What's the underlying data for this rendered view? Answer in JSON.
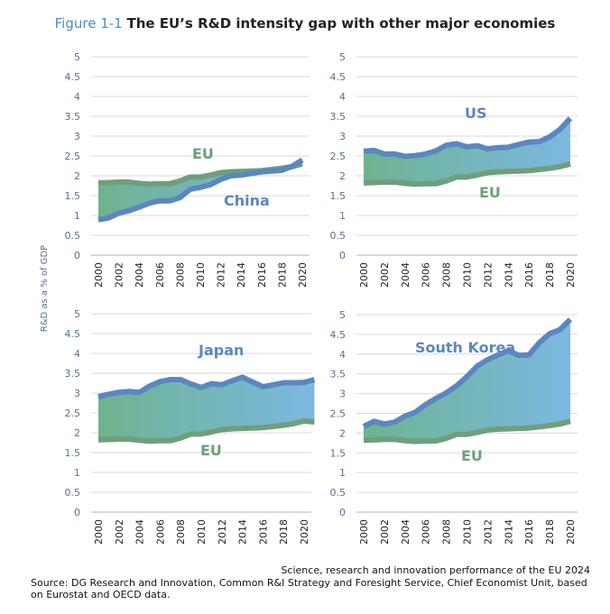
{
  "title": {
    "figure": "Figure 1-1",
    "text": "The EU’s R&D intensity gap with other major economies"
  },
  "ylabel": "R&D as a % of GDP",
  "colors": {
    "partner_line": "#5b87c0",
    "eu_line": "#6f9f7c",
    "fill_start": "#6eb38f",
    "fill_end": "#7cb8e2",
    "grid": "#d9d9d9",
    "axis_text": "#59708f"
  },
  "chart_data": [
    {
      "type": "area",
      "panel": "top-left",
      "x": [
        2000,
        2001,
        2002,
        2003,
        2004,
        2005,
        2006,
        2007,
        2008,
        2009,
        2010,
        2011,
        2012,
        2013,
        2014,
        2015,
        2016,
        2017,
        2018,
        2019,
        2020
      ],
      "xticks": [
        "2000",
        "2002",
        "2004",
        "2006",
        "2008",
        "2010",
        "2012",
        "2014",
        "2016",
        "2018",
        "2020"
      ],
      "yticks": [
        "0",
        "0.5",
        "1",
        "1.5",
        "2",
        "2.5",
        "3",
        "3.5",
        "4",
        "4.5",
        "5"
      ],
      "ylim": [
        0,
        5
      ],
      "grid": true,
      "series": [
        {
          "name": "EU",
          "values": [
            1.82,
            1.83,
            1.84,
            1.84,
            1.81,
            1.79,
            1.8,
            1.8,
            1.87,
            1.97,
            1.97,
            2.02,
            2.08,
            2.1,
            2.11,
            2.12,
            2.13,
            2.16,
            2.19,
            2.23,
            2.3
          ]
        },
        {
          "name": "China",
          "values": [
            0.89,
            0.94,
            1.06,
            1.12,
            1.21,
            1.31,
            1.37,
            1.37,
            1.45,
            1.66,
            1.71,
            1.78,
            1.91,
            2.0,
            2.02,
            2.06,
            2.1,
            2.12,
            2.14,
            2.24,
            2.4
          ]
        }
      ]
    },
    {
      "type": "area",
      "panel": "top-right",
      "x": [
        2000,
        2001,
        2002,
        2003,
        2004,
        2005,
        2006,
        2007,
        2008,
        2009,
        2010,
        2011,
        2012,
        2013,
        2014,
        2015,
        2016,
        2017,
        2018,
        2019,
        2020
      ],
      "xticks": [
        "2000",
        "2002",
        "2004",
        "2006",
        "2008",
        "2010",
        "2012",
        "2014",
        "2016",
        "2018",
        "2020"
      ],
      "yticks": [
        "0",
        "0.5",
        "1",
        "1.5",
        "2",
        "2.5",
        "3",
        "3.5",
        "4",
        "4.5",
        "5"
      ],
      "ylim": [
        0,
        5
      ],
      "grid": true,
      "series": [
        {
          "name": "EU",
          "values": [
            1.82,
            1.83,
            1.84,
            1.84,
            1.81,
            1.79,
            1.8,
            1.8,
            1.87,
            1.97,
            1.97,
            2.02,
            2.08,
            2.1,
            2.11,
            2.12,
            2.13,
            2.16,
            2.19,
            2.23,
            2.3
          ]
        },
        {
          "name": "US",
          "values": [
            2.62,
            2.64,
            2.55,
            2.55,
            2.49,
            2.51,
            2.55,
            2.63,
            2.77,
            2.81,
            2.73,
            2.76,
            2.68,
            2.71,
            2.72,
            2.79,
            2.85,
            2.86,
            2.98,
            3.17,
            3.45
          ]
        }
      ]
    },
    {
      "type": "area",
      "panel": "bottom-left",
      "x": [
        2000,
        2001,
        2002,
        2003,
        2004,
        2005,
        2006,
        2007,
        2008,
        2009,
        2010,
        2011,
        2012,
        2013,
        2014,
        2015,
        2016,
        2017,
        2018,
        2019,
        2020,
        2021
      ],
      "xticks": [
        "2000",
        "2002",
        "2004",
        "2006",
        "2008",
        "2010",
        "2012",
        "2014",
        "2016",
        "2018",
        "2020"
      ],
      "yticks": [
        "0",
        "0.5",
        "1",
        "1.5",
        "2",
        "2.5",
        "3",
        "3.5",
        "4",
        "4.5",
        "5"
      ],
      "ylim": [
        0,
        5
      ],
      "grid": true,
      "series": [
        {
          "name": "EU",
          "values": [
            1.82,
            1.83,
            1.84,
            1.84,
            1.81,
            1.79,
            1.8,
            1.8,
            1.87,
            1.97,
            1.97,
            2.02,
            2.08,
            2.1,
            2.11,
            2.12,
            2.13,
            2.16,
            2.19,
            2.23,
            2.3,
            2.27
          ]
        },
        {
          "name": "Japan",
          "values": [
            2.91,
            2.97,
            3.02,
            3.04,
            3.02,
            3.18,
            3.29,
            3.34,
            3.34,
            3.23,
            3.14,
            3.24,
            3.21,
            3.31,
            3.4,
            3.28,
            3.16,
            3.21,
            3.26,
            3.26,
            3.27,
            3.34
          ]
        }
      ]
    },
    {
      "type": "area",
      "panel": "bottom-right",
      "x": [
        2000,
        2001,
        2002,
        2003,
        2004,
        2005,
        2006,
        2007,
        2008,
        2009,
        2010,
        2011,
        2012,
        2013,
        2014,
        2015,
        2016,
        2017,
        2018,
        2019,
        2020
      ],
      "xticks": [
        "2000",
        "2002",
        "2004",
        "2006",
        "2008",
        "2010",
        "2012",
        "2014",
        "2016",
        "2018",
        "2020"
      ],
      "yticks": [
        "0",
        "0.5",
        "1",
        "1.5",
        "2",
        "2.5",
        "3",
        "3.5",
        "4",
        "4.5",
        "5"
      ],
      "ylim": [
        0,
        5
      ],
      "grid": true,
      "series": [
        {
          "name": "EU",
          "values": [
            1.82,
            1.83,
            1.84,
            1.84,
            1.81,
            1.79,
            1.8,
            1.8,
            1.87,
            1.97,
            1.97,
            2.02,
            2.08,
            2.1,
            2.11,
            2.12,
            2.13,
            2.16,
            2.19,
            2.23,
            2.3
          ]
        },
        {
          "name": "South Korea",
          "values": [
            2.17,
            2.3,
            2.23,
            2.28,
            2.43,
            2.53,
            2.72,
            2.88,
            3.02,
            3.2,
            3.43,
            3.7,
            3.86,
            3.98,
            4.09,
            3.97,
            3.98,
            4.29,
            4.52,
            4.62,
            4.88
          ]
        }
      ]
    }
  ],
  "footer": {
    "publication": "Science, research and innovation performance of the EU 2024",
    "source": "Source: DG Research and Innovation, Common R&I Strategy and Foresight Service, Chief Economist Unit, based on Eurostat and OECD data."
  }
}
